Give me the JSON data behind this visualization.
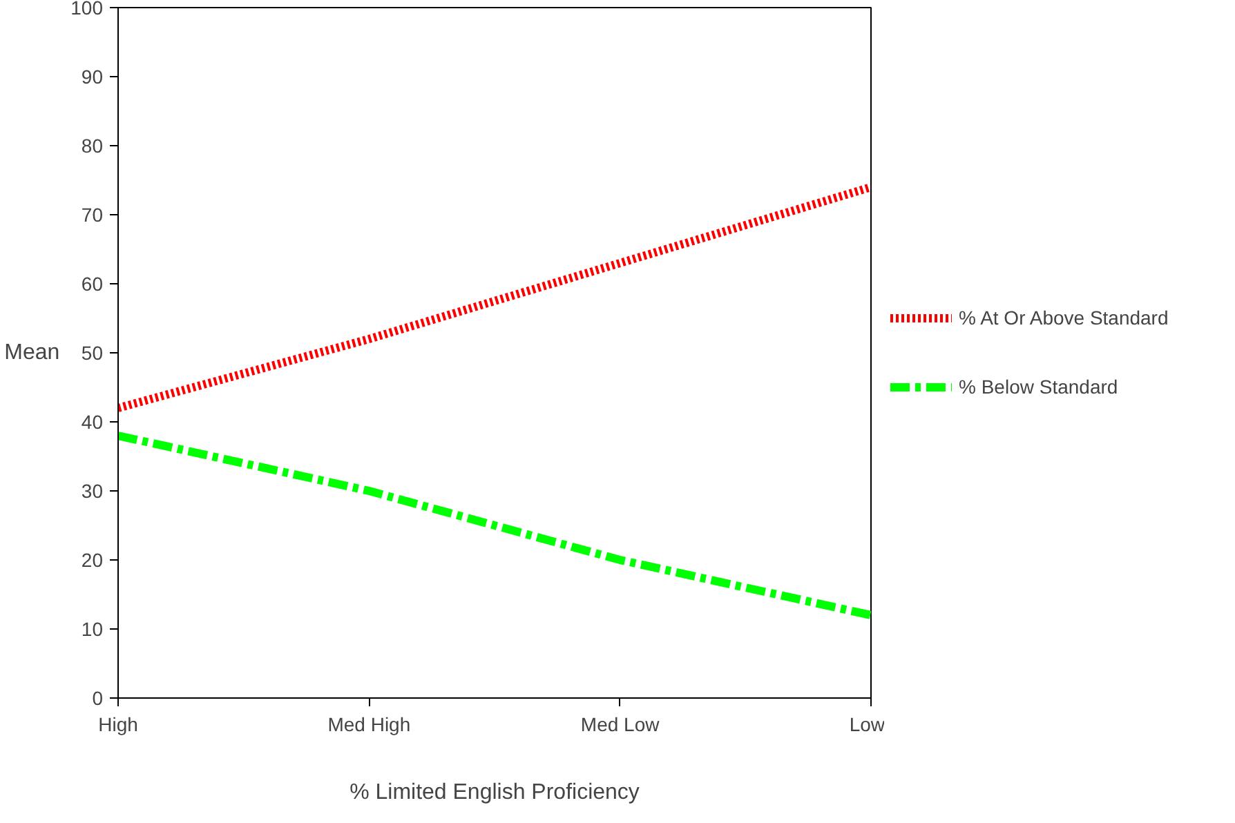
{
  "chart_data": {
    "type": "line",
    "xlabel": "% Limited English Proficiency",
    "ylabel": "Mean",
    "categories": [
      "High",
      "Med High",
      "Med Low",
      "Low"
    ],
    "series": [
      {
        "name": "% At Or Above Standard",
        "color": "#ff0000",
        "line_style": "dotted",
        "values": [
          42,
          52,
          63,
          74
        ]
      },
      {
        "name": "% Below Standard",
        "color": "#00ff00",
        "line_style": "dashdot",
        "values": [
          38,
          30,
          20,
          12
        ]
      }
    ],
    "ylim": [
      0,
      100
    ],
    "yticks": [
      0,
      10,
      20,
      30,
      40,
      50,
      60,
      70,
      80,
      90,
      100
    ],
    "grid": false,
    "legend": "right",
    "marker": "none"
  }
}
